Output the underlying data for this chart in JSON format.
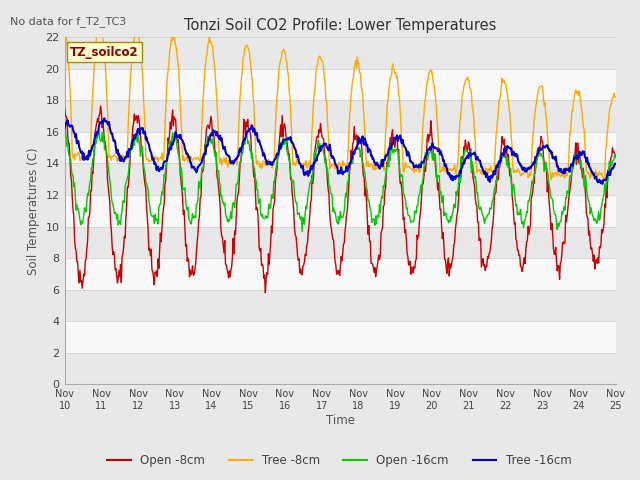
{
  "title": "Tonzi Soil CO2 Profile: Lower Temperatures",
  "top_left_text": "No data for f_T2_TC3",
  "ylabel": "Soil Temperatures (C)",
  "xlabel": "Time",
  "legend_label": "TZ_soilco2",
  "ylim": [
    0,
    22
  ],
  "yticks": [
    0,
    2,
    4,
    6,
    8,
    10,
    12,
    14,
    16,
    18,
    20,
    22
  ],
  "xtick_labels": [
    "Nov 10",
    "Nov 11",
    "Nov 12",
    "Nov 13",
    "Nov 14",
    "Nov 15",
    "Nov 16",
    "Nov 17",
    "Nov 18",
    "Nov 19",
    "Nov 20",
    "Nov 21",
    "Nov 22",
    "Nov 23",
    "Nov 24",
    "Nov 25"
  ],
  "colors": {
    "open_8cm": "#cc0000",
    "tree_8cm": "#ffaa00",
    "open_16cm": "#00cc00",
    "tree_16cm": "#0000cc"
  },
  "legend_entries": [
    "Open -8cm",
    "Tree -8cm",
    "Open -16cm",
    "Tree -16cm"
  ],
  "strip_colors": [
    "#e8e8e8",
    "#f8f8f8"
  ],
  "fig_bg": "#e8e8e8"
}
